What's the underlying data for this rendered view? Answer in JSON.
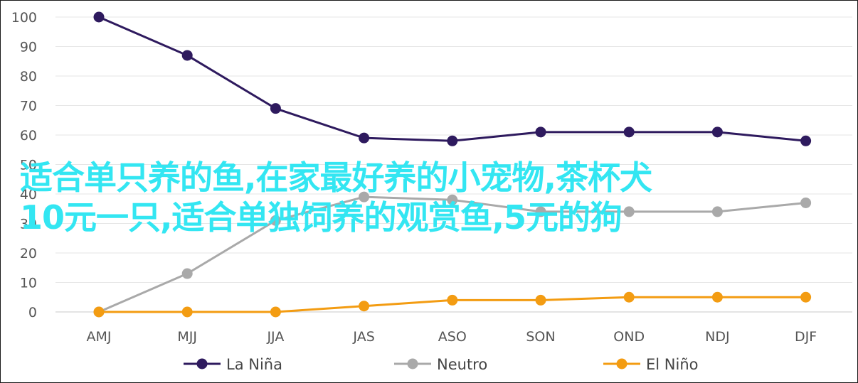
{
  "chart_data": {
    "type": "line",
    "categories": [
      "AMJ",
      "MJJ",
      "JJA",
      "JAS",
      "ASO",
      "SON",
      "OND",
      "NDJ",
      "DJF"
    ],
    "yticks": [
      "0",
      "10",
      "20",
      "30",
      "40",
      "50",
      "60",
      "70",
      "80",
      "90",
      "100"
    ],
    "ylim": [
      0,
      100
    ],
    "grid": true,
    "legend_position": "bottom",
    "series": [
      {
        "name": "La Niña",
        "color": "#2e1a5e",
        "values": [
          100,
          87,
          69,
          59,
          58,
          61,
          61,
          61,
          58
        ]
      },
      {
        "name": "Neutro",
        "color": "#a9a9a9",
        "values": [
          0,
          13,
          31,
          39,
          38,
          34,
          34,
          34,
          37
        ]
      },
      {
        "name": "El Niño",
        "color": "#f39c12",
        "values": [
          0,
          0,
          0,
          2,
          4,
          4,
          5,
          5,
          5
        ]
      }
    ]
  },
  "overlay": {
    "line1": "适合单只养的鱼,在家最好养的小宠物,茶杯犬",
    "line2": "10元一只,适合单独饲养的观赏鱼,5元的狗"
  }
}
